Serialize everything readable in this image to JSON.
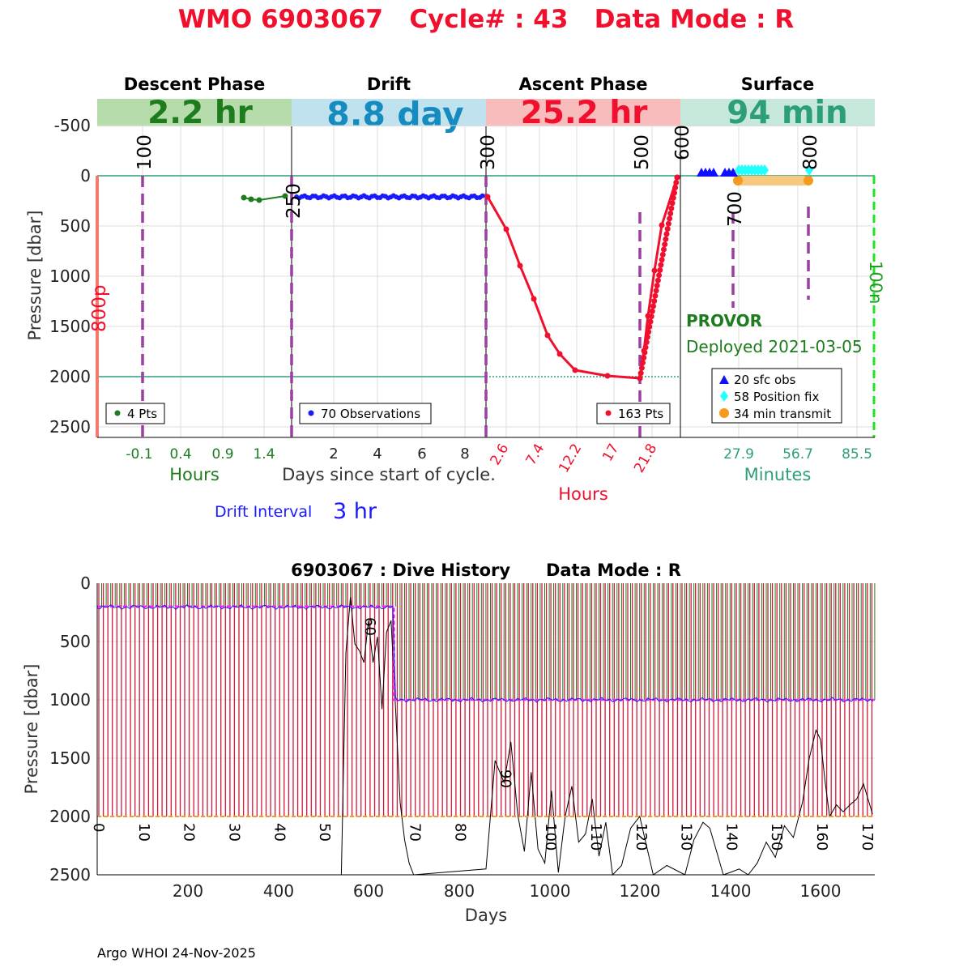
{
  "header": {
    "title": "WMO 6903067   Cycle# : 43   Data Mode : R"
  },
  "top_panel": {
    "ylabel": "Pressure [dbar]",
    "yticks": [
      "-500",
      "0",
      "500",
      "1000",
      "1500",
      "2000",
      "2500"
    ],
    "phases": [
      {
        "name": "Descent Phase",
        "duration": "2.2 hr",
        "band_color": "#b7dcab",
        "text_color": "#1e7b1e"
      },
      {
        "name": "Drift",
        "duration": "8.8 day",
        "band_color": "#bfe2ee",
        "text_color": "#168bc0"
      },
      {
        "name": "Ascent Phase",
        "duration": "25.2 hr",
        "band_color": "#f8bcbc",
        "text_color": "#f0102e"
      },
      {
        "name": "Surface",
        "duration": "94 min",
        "band_color": "#c5e8da",
        "text_color": "#2e9e7a"
      }
    ],
    "descent": {
      "xticks": [
        "-0.1",
        "0.4",
        "0.9",
        "1.4"
      ],
      "xlabel": "Hours",
      "legend": "4 Pts",
      "marker_label": "100",
      "left_label": "800p"
    },
    "drift": {
      "xticks": [
        "2",
        "4",
        "6",
        "8"
      ],
      "xlabel": "Days since start of cycle.",
      "legend": "70 Observations",
      "marker_label": "250",
      "boundary_label": "300"
    },
    "ascent": {
      "xticks": [
        "2.6",
        "7.4",
        "12.2",
        "17",
        "21.8"
      ],
      "xlabel": "Hours",
      "legend": "163 Pts",
      "marker_label": "500",
      "boundary_label": "600"
    },
    "surface": {
      "xticks": [
        "27.9",
        "56.7",
        "85.5"
      ],
      "xlabel": "Minutes",
      "marker_label_a": "700",
      "marker_label_b": "800",
      "right_label": "100n",
      "float_type": "PROVOR",
      "deployed": "Deployed 2021-03-05",
      "legend": [
        "20 sfc obs",
        "58 Position fix",
        "34 min transmit"
      ]
    },
    "drift_interval_label": "Drift Interval",
    "drift_interval_value": "3 hr"
  },
  "bottom_panel": {
    "title": "6903067 : Dive History      Data Mode : R",
    "ylabel": "Pressure [dbar]",
    "xlabel": "Days",
    "yticks": [
      "0",
      "500",
      "1000",
      "1500",
      "2000",
      "2500"
    ],
    "xticks": [
      "200",
      "400",
      "600",
      "800",
      "1000",
      "1200",
      "1400",
      "1600"
    ],
    "cycle_labels": [
      "0",
      "10",
      "20",
      "30",
      "40",
      "50",
      "60",
      "70",
      "80",
      "90",
      "100",
      "110",
      "120",
      "130",
      "140",
      "150",
      "160",
      "170"
    ]
  },
  "footer": "Argo WHOI 24-Nov-2025",
  "chart_data": [
    {
      "type": "line",
      "title": "WMO 6903067   Cycle# : 43   Data Mode : R",
      "ylabel": "Pressure [dbar]",
      "ylim": [
        -750,
        2600
      ],
      "y_reversed": true,
      "series": [
        {
          "name": "4 Pts",
          "phase": "Descent Phase",
          "x_unit": "Hours",
          "x": [
            1.1,
            1.2,
            1.3,
            1.7
          ],
          "y": [
            220,
            235,
            245,
            215
          ]
        },
        {
          "name": "70 Observations",
          "phase": "Drift",
          "x_unit": "Days",
          "x_range": [
            0.3,
            8.8
          ],
          "y_typical": 210
        },
        {
          "name": "163 Pts",
          "phase": "Ascent Phase",
          "x_unit": "Hours",
          "x": [
            0.1,
            2.6,
            4.9,
            7.4,
            9.2,
            10.7,
            12.2,
            15.5,
            19.8,
            20.8,
            21.5,
            22.6,
            23.7,
            24.8
          ],
          "y": [
            210,
            540,
            900,
            1220,
            1590,
            1790,
            1950,
            1990,
            2020,
            1750,
            1400,
            950,
            500,
            20
          ]
        },
        {
          "name": "20 sfc obs",
          "phase": "Surface",
          "x_unit": "Minutes",
          "y": 0
        },
        {
          "name": "58 Position fix",
          "phase": "Surface",
          "x_unit": "Minutes",
          "y": 0
        },
        {
          "name": "34 min transmit",
          "phase": "Surface",
          "x_unit": "Minutes",
          "x": [
            27.9,
            56.7
          ],
          "y": [
            55,
            55
          ]
        }
      ],
      "reference_lines": [
        0,
        2000
      ]
    },
    {
      "type": "line",
      "title": "6903067 : Dive History      Data Mode : R",
      "xlabel": "Days",
      "ylabel": "Pressure [dbar]",
      "xlim": [
        0,
        1720
      ],
      "ylim": [
        0,
        2500
      ],
      "y_reversed": true,
      "park_pressure": [
        {
          "x": [
            0,
            650
          ],
          "y": 200
        },
        {
          "x": [
            660,
            1720
          ],
          "y": 1000
        }
      ],
      "profile_pressure": 2000,
      "cycle_count": 172,
      "cycle_days": 10,
      "depth_trace": {
        "x": [
          0,
          540,
          550,
          560,
          570,
          580,
          590,
          600,
          610,
          620,
          630,
          640,
          650,
          660,
          670,
          680,
          690,
          700,
          860,
          880,
          900,
          915,
          930,
          945,
          960,
          975,
          990,
          1005,
          1020,
          1035,
          1050,
          1065,
          1080,
          1095,
          1110,
          1125,
          1140,
          1160,
          1180,
          1200,
          1215,
          1230,
          1260,
          1300,
          1320,
          1340,
          1355,
          1370,
          1385,
          1400,
          1420,
          1440,
          1460,
          1480,
          1500,
          1520,
          1540,
          1560,
          1575,
          1590,
          1600,
          1610,
          1620,
          1635,
          1650,
          1665,
          1680,
          1695,
          1705,
          1715
        ],
        "y": [
          2500,
          2500,
          600,
          120,
          520,
          580,
          680,
          320,
          680,
          460,
          1080,
          420,
          320,
          1080,
          1880,
          2200,
          2400,
          2500,
          2450,
          1520,
          1710,
          1360,
          1980,
          2300,
          1620,
          2280,
          2400,
          1780,
          2480,
          2000,
          1740,
          2220,
          2150,
          1850,
          2340,
          2050,
          2500,
          2420,
          2100,
          2000,
          2250,
          2500,
          2420,
          2500,
          2200,
          2050,
          2100,
          2300,
          2500,
          2480,
          2450,
          2500,
          2400,
          2220,
          2350,
          2080,
          2180,
          1880,
          1500,
          1260,
          1340,
          1700,
          2000,
          1900,
          1960,
          1900,
          1850,
          1720,
          1850,
          1980
        ]
      }
    }
  ]
}
